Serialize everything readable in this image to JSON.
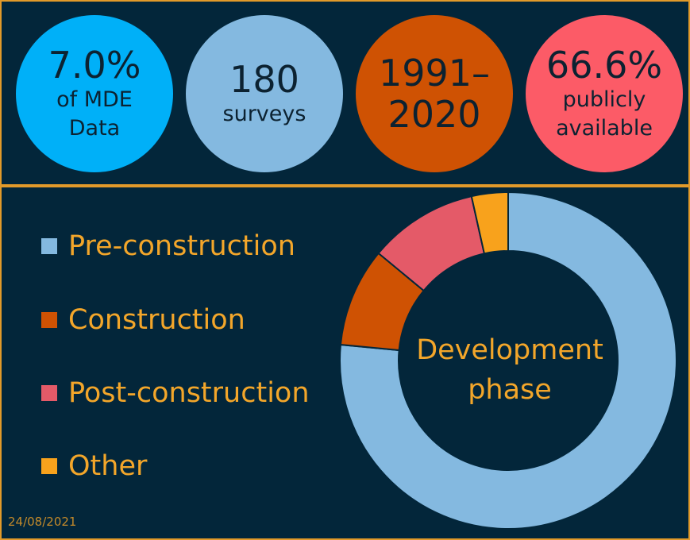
{
  "stats": [
    {
      "big": "7.0%",
      "small": "of MDE\nData",
      "color": "#00b0f8"
    },
    {
      "big": "180",
      "small": "surveys",
      "color": "#84b9e0"
    },
    {
      "big": "1991–\n2020",
      "small": "",
      "color": "#cf5203"
    },
    {
      "big": "66.6%",
      "small": "publicly\navailable",
      "color": "#fc5b67"
    }
  ],
  "chart_data": {
    "type": "pie",
    "title": "Development phase",
    "series": [
      {
        "name": "Pre-construction",
        "value": 76.5,
        "color": "#84b9e0"
      },
      {
        "name": "Construction",
        "value": 9.5,
        "color": "#cf5203"
      },
      {
        "name": "Post-construction",
        "value": 10.5,
        "color": "#e45a68"
      },
      {
        "name": "Other",
        "value": 3.5,
        "color": "#f8a21c"
      }
    ],
    "legend_position": "left"
  },
  "date": "24/08/2021"
}
